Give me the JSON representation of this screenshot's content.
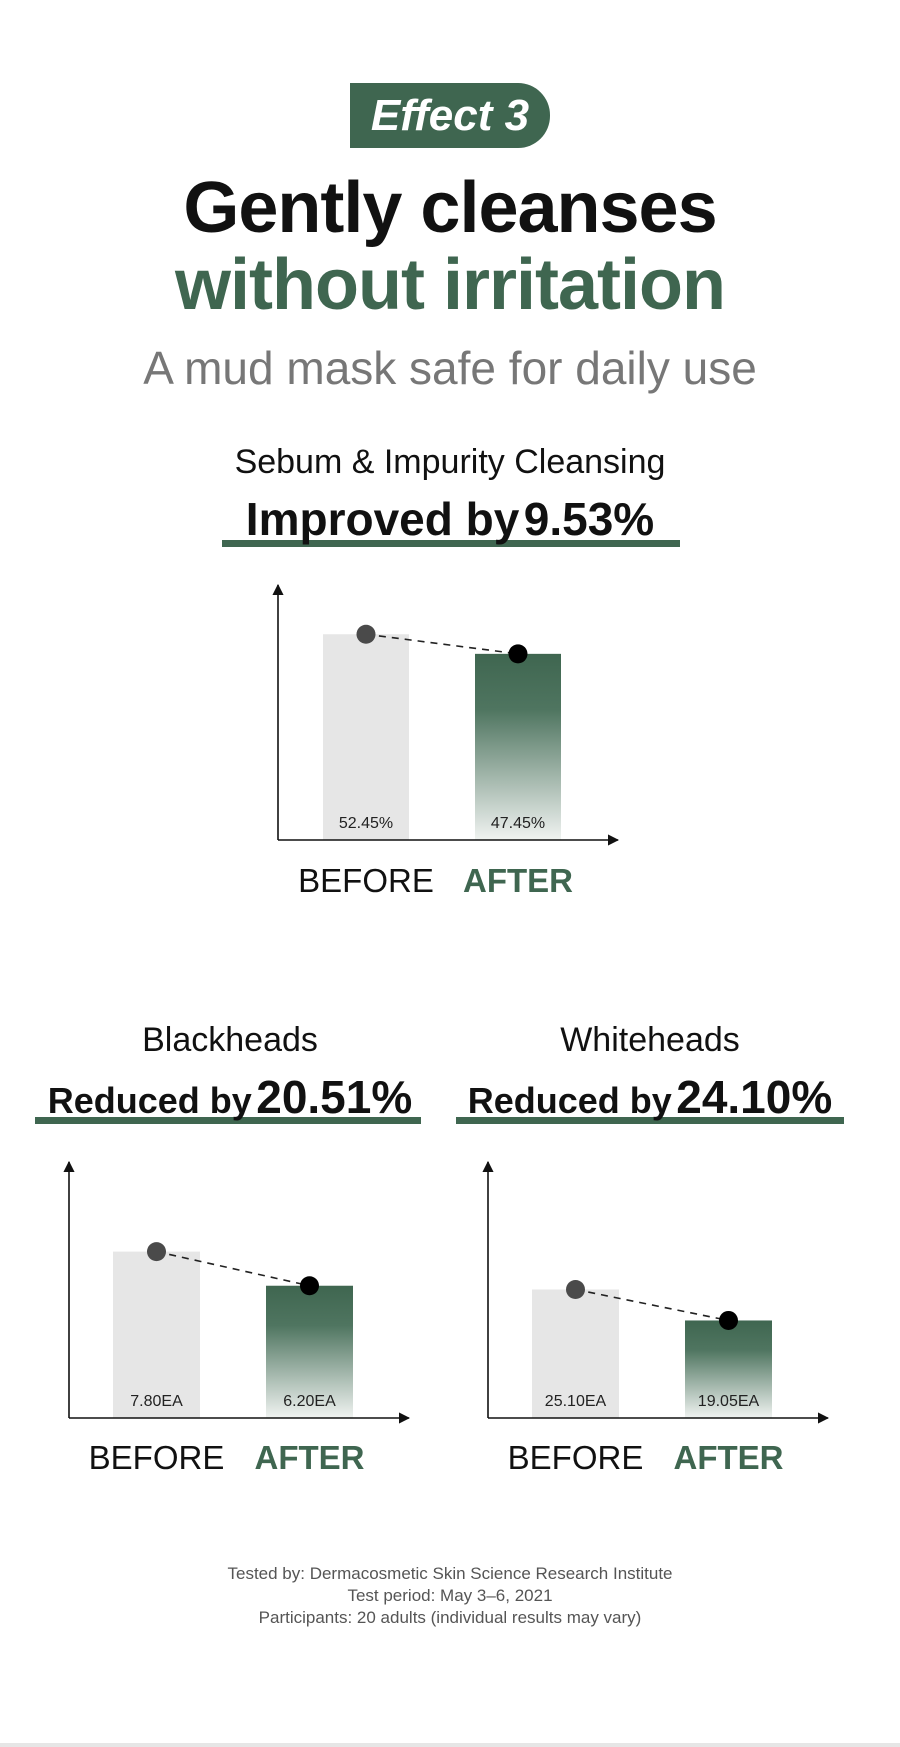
{
  "badge": "Effect 3",
  "headline_line1": "Gently cleanses",
  "headline_line2": "without irritation",
  "subtitle": "A mud mask safe for daily use",
  "metrics": [
    {
      "title": "Sebum & Impurity Cleansing",
      "result_prefix": "Improved by",
      "result_value": "9.53%"
    },
    {
      "title": "Blackheads",
      "result_prefix": "Reduced by",
      "result_value": "20.51%"
    },
    {
      "title": "Whiteheads",
      "result_prefix": "Reduced by",
      "result_value": "24.10%"
    }
  ],
  "footer": {
    "line1": "Tested by: Dermacosmetic Skin Science Research Institute",
    "line2": "Test period: May 3–6, 2021",
    "line3": "Participants: 20 adults (individual results may vary)"
  },
  "colors": {
    "accent": "#3f6650",
    "before_bar": "#e6e6e6",
    "dot_before": "#4a4a4a",
    "dot_after": "#000000"
  },
  "chart_data": [
    {
      "type": "bar",
      "title": "Sebum & Impurity Cleansing",
      "categories": [
        "BEFORE",
        "AFTER"
      ],
      "values": [
        52.45,
        47.45
      ],
      "value_labels": [
        "52.45%",
        "47.45%"
      ],
      "ylim": [
        0,
        65
      ]
    },
    {
      "type": "bar",
      "title": "Blackheads",
      "categories": [
        "BEFORE",
        "AFTER"
      ],
      "values": [
        7.8,
        6.2
      ],
      "value_labels": [
        "7.80EA",
        "6.20EA"
      ],
      "ylim": [
        0,
        12
      ]
    },
    {
      "type": "bar",
      "title": "Whiteheads",
      "categories": [
        "BEFORE",
        "AFTER"
      ],
      "values": [
        25.1,
        19.05
      ],
      "value_labels": [
        "25.10EA",
        "19.05EA"
      ],
      "ylim": [
        0,
        50
      ]
    }
  ]
}
